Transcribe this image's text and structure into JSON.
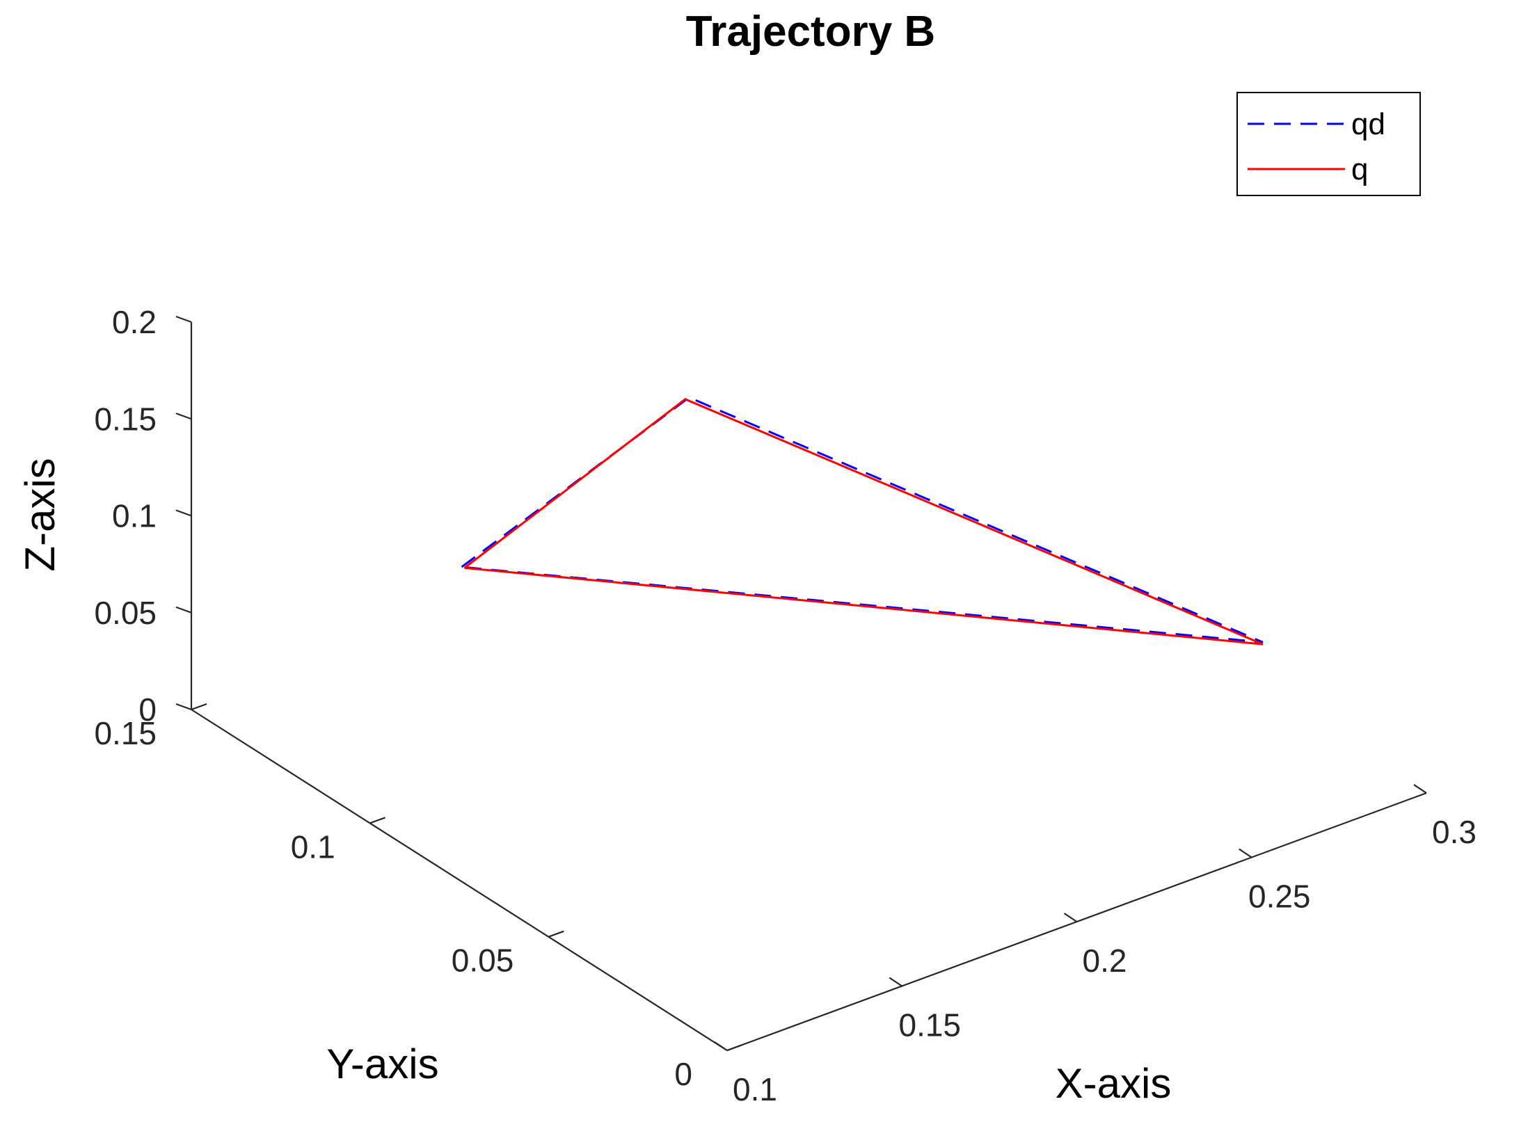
{
  "chart_data": {
    "type": "line",
    "projection": "3d",
    "title": "Trajectory B",
    "xlabel": "X-axis",
    "ylabel": "Y-axis",
    "zlabel": "Z-axis",
    "xlim": [
      0.1,
      0.3
    ],
    "ylim": [
      0,
      0.15
    ],
    "zlim": [
      0,
      0.2
    ],
    "xticks": [
      "0.1",
      "0.15",
      "0.2",
      "0.25",
      "0.3"
    ],
    "yticks": [
      "0",
      "0.05",
      "0.1",
      "0.15"
    ],
    "zticks": [
      "0",
      "0.05",
      "0.1",
      "0.15",
      "0.2"
    ],
    "grid": false,
    "legend_position": "top-right",
    "series": [
      {
        "name": "qd",
        "color": "#0000ff",
        "style": "dashed",
        "x": [
          0.1344,
          0.1963,
          0.2857,
          0.1344
        ],
        "y": [
          0.108,
          0.1049,
          0.0318,
          0.108
        ],
        "z": [
          0.1,
          0.15,
          0.05,
          0.1
        ]
      },
      {
        "name": "q",
        "color": "#ff0000",
        "style": "solid",
        "x": [
          0.1352,
          0.1962,
          0.2857,
          0.1352
        ],
        "y": [
          0.108,
          0.1059,
          0.0318,
          0.108
        ],
        "z": [
          0.099,
          0.148,
          0.049,
          0.099
        ]
      }
    ]
  }
}
